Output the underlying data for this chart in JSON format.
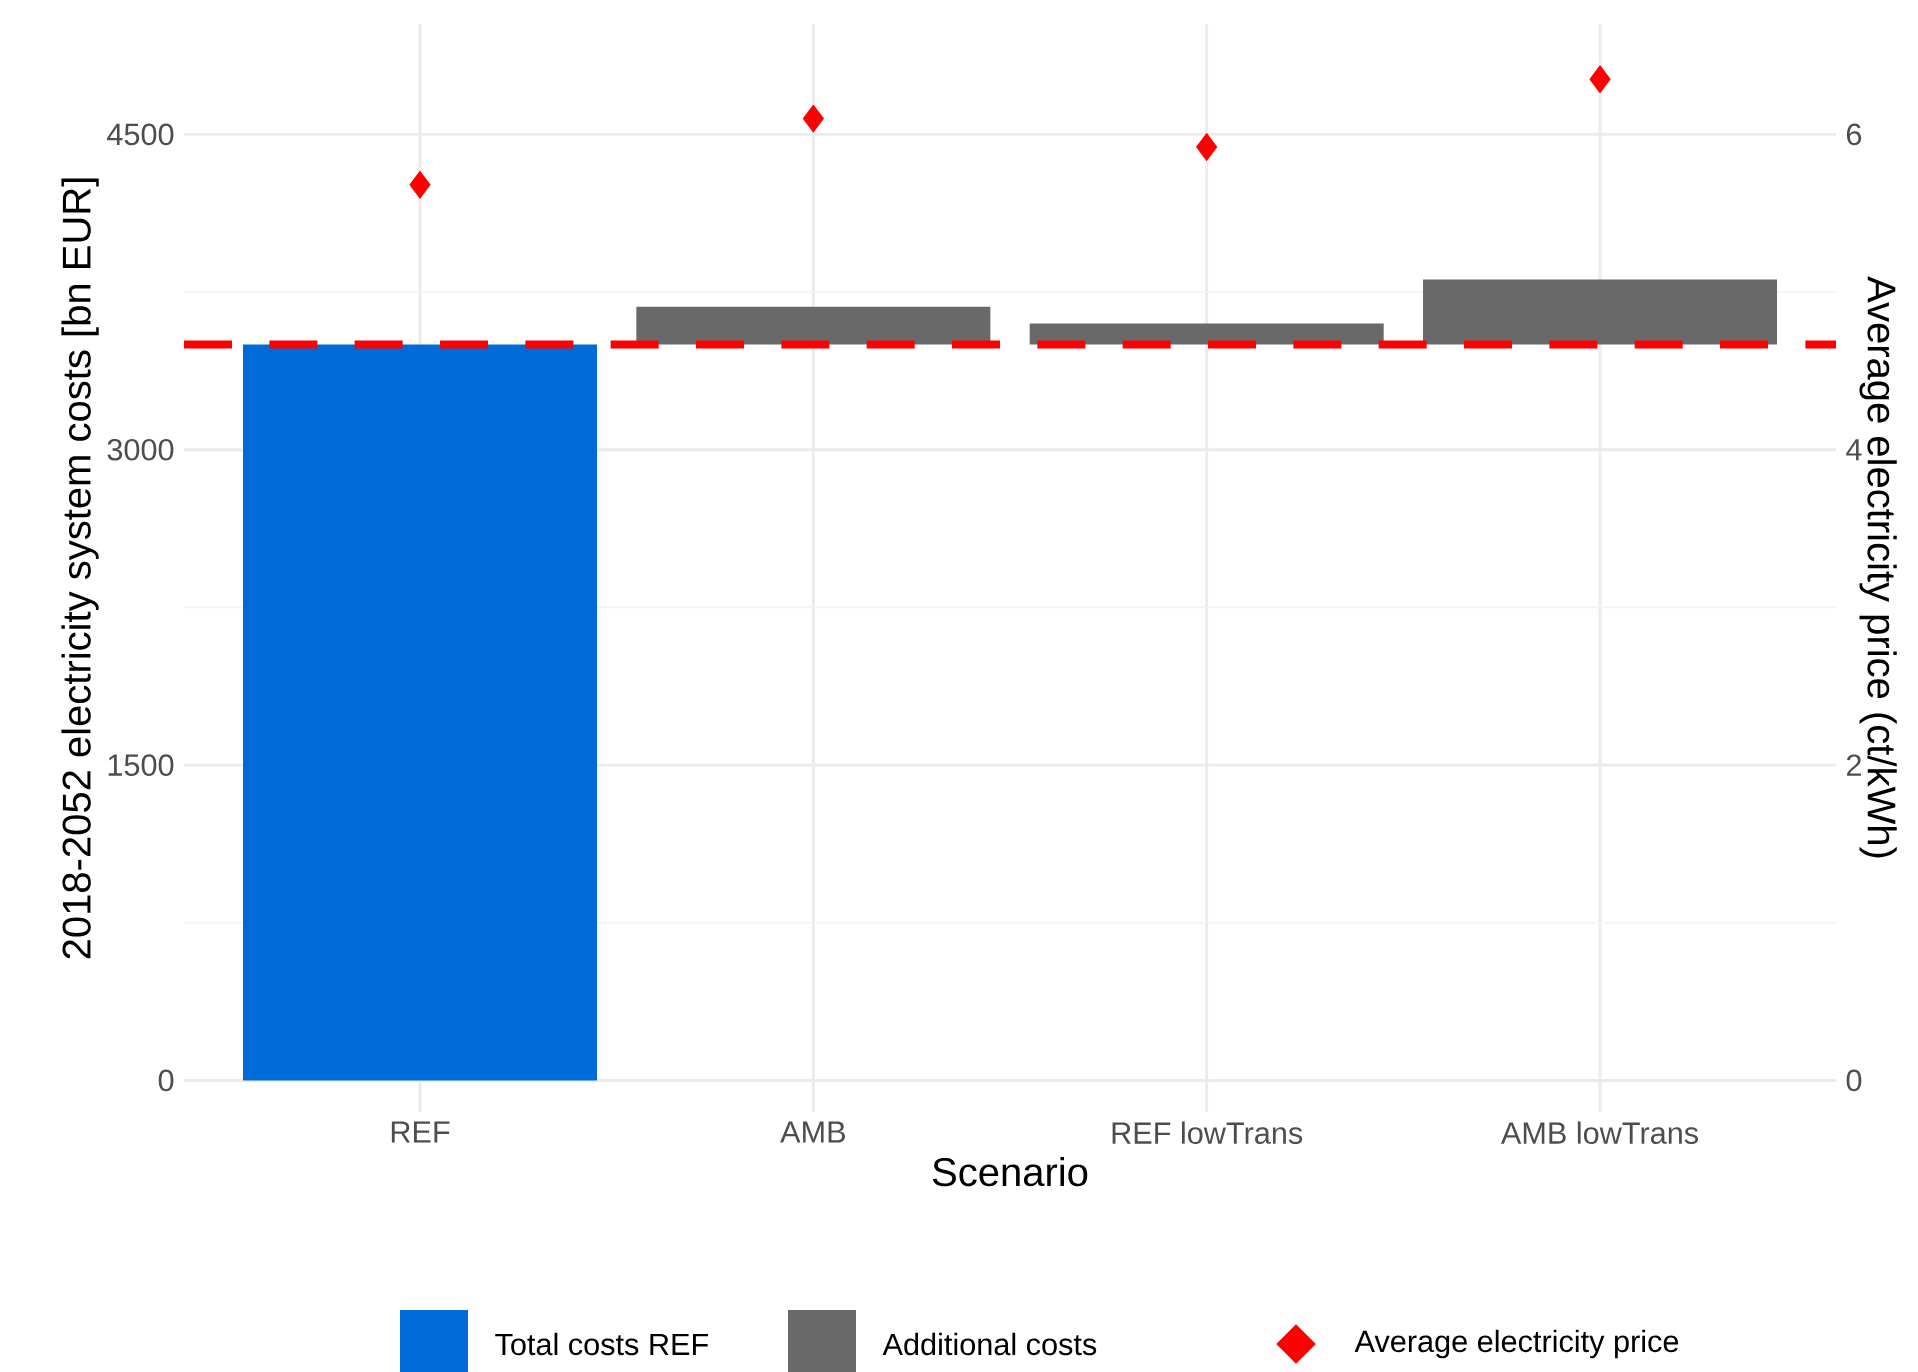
{
  "chart_data": {
    "type": "bar",
    "xlabel": "Scenario",
    "ylabel": "2018-2052 electricity system costs [bn EUR]",
    "y2label": "Average electricity price (ct/kWh)",
    "categories": [
      "REF",
      "AMB",
      "REF lowTrans",
      "AMB lowTrans"
    ],
    "series": [
      {
        "name": "Total costs REF",
        "color": "#006ad9",
        "values": [
          3500,
          null,
          null,
          null
        ]
      },
      {
        "name": "Additional costs",
        "color": "#696969",
        "values": [
          null,
          180,
          100,
          310
        ],
        "base": [
          null,
          3500,
          3500,
          3500
        ]
      },
      {
        "name": "Average electricity price",
        "type": "scatter",
        "axis": "y2",
        "color": "#ff0000",
        "values": [
          5.68,
          6.1,
          5.92,
          6.35
        ]
      }
    ],
    "ylim": [
      -150,
      5025
    ],
    "yticks": [
      0,
      1500,
      3000,
      4500
    ],
    "y2lim": [
      -0.2,
      6.7
    ],
    "y2ticks": [
      0,
      2,
      4,
      6
    ],
    "ref_lines": [
      {
        "axis": "y",
        "value": 3500,
        "color": "#ff0000",
        "line_style": "dashed"
      }
    ],
    "grid": true,
    "legend": "bottom",
    "marker": "diamond"
  }
}
